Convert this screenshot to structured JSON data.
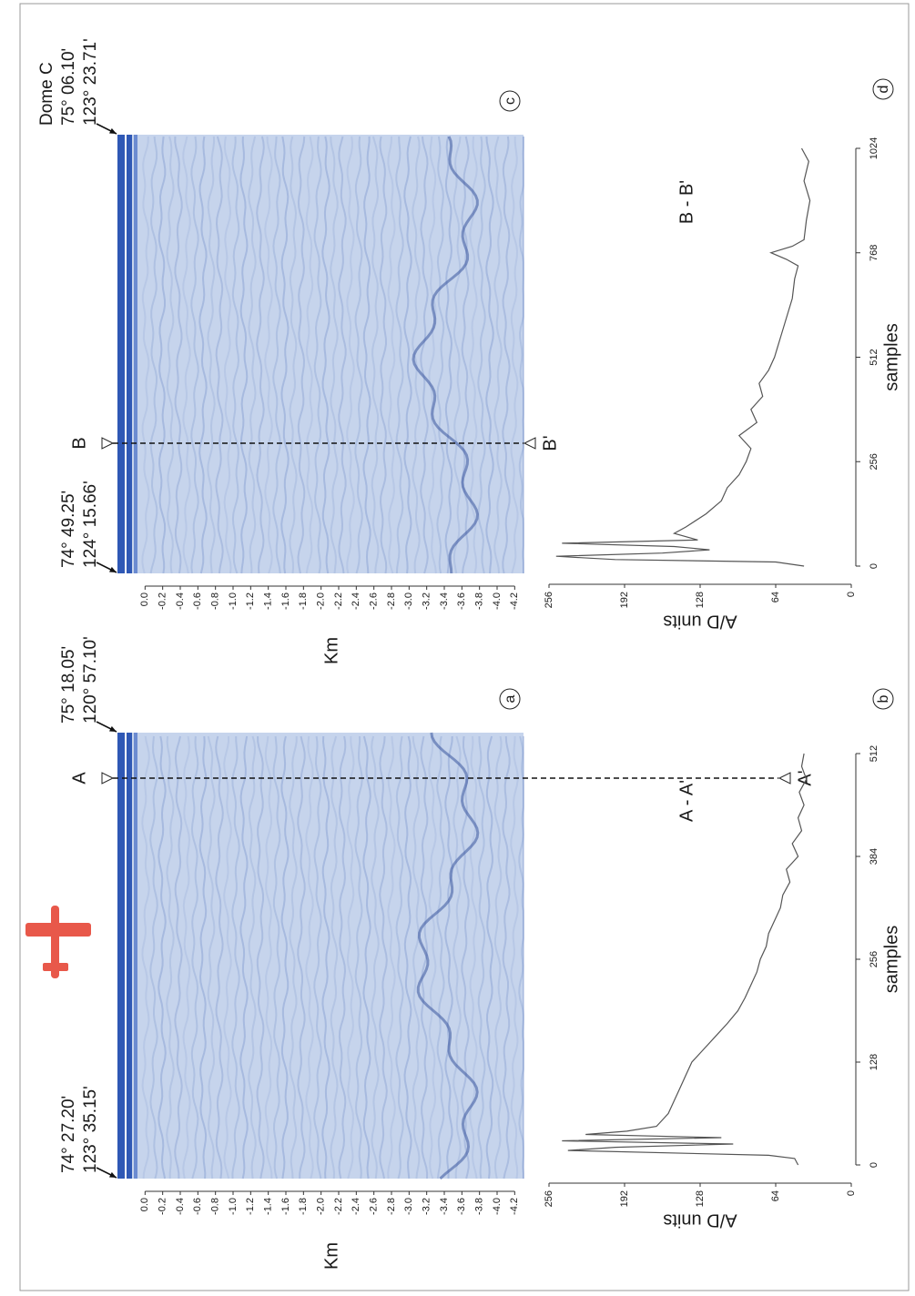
{
  "chart_data": [
    {
      "type": "radargram",
      "panel": "a",
      "ylabel": "Km",
      "ylim": [
        0.2,
        -4.3
      ],
      "yticks": [
        {
          "value": 0,
          "label": "0.0"
        },
        -0.2,
        -0.4,
        -0.6,
        -0.8,
        {
          "value": -1,
          "label": "-1.0"
        },
        -1.2,
        -1.4,
        -1.6,
        -1.8,
        {
          "value": -2,
          "label": "-2.0"
        },
        -2.2,
        -2.4,
        -2.6,
        -2.8,
        {
          "value": -3,
          "label": "-3.0"
        },
        -3.2,
        -3.4,
        -3.6,
        -3.8,
        {
          "value": -4,
          "label": "-4.0"
        },
        -4.2
      ],
      "start_coords": [
        "74° 27.20'",
        "123° 35.15'"
      ],
      "end_coords": [
        "75° 18.05'",
        "120° 57.10'"
      ],
      "section": [
        "A",
        "A'"
      ]
    },
    {
      "type": "line",
      "panel": "b",
      "title": "A - A'",
      "xlabel": "samples",
      "ylabel": "A/D units",
      "color": "#555555",
      "xlim": [
        0,
        512
      ],
      "xticks": [
        0,
        128,
        256,
        384,
        512
      ],
      "ylim": [
        0,
        256
      ],
      "yticks": [
        0,
        64,
        128,
        192,
        256
      ],
      "x": [
        0,
        8,
        12,
        18,
        22,
        26,
        30,
        34,
        38,
        42,
        48,
        56,
        64,
        80,
        96,
        112,
        128,
        144,
        160,
        176,
        192,
        208,
        224,
        240,
        256,
        272,
        288,
        304,
        320,
        336,
        352,
        368,
        384,
        400,
        416,
        432,
        448,
        464,
        480,
        496,
        512
      ],
      "values": [
        45,
        48,
        70,
        240,
        200,
        100,
        245,
        110,
        225,
        190,
        165,
        160,
        155,
        150,
        145,
        140,
        135,
        125,
        115,
        105,
        96,
        90,
        85,
        80,
        77,
        72,
        70,
        65,
        60,
        58,
        52,
        55,
        45,
        50,
        42,
        45,
        40,
        44,
        38,
        42,
        40
      ]
    },
    {
      "type": "radargram",
      "panel": "c",
      "ylabel": "Km",
      "ylim": [
        0.2,
        -4.3
      ],
      "yticks": [
        {
          "value": 0,
          "label": "0.0"
        },
        -0.2,
        -0.4,
        -0.6,
        -0.8,
        {
          "value": -1,
          "label": "-1.0"
        },
        -1.2,
        -1.4,
        -1.6,
        -1.8,
        {
          "value": -2,
          "label": "-2.0"
        },
        -2.2,
        -2.4,
        -2.6,
        -2.8,
        {
          "value": -3,
          "label": "-3.0"
        },
        -3.2,
        -3.4,
        -3.6,
        -3.8,
        {
          "value": -4,
          "label": "-4.0"
        },
        -4.2
      ],
      "start_coords": [
        "74° 49.25'",
        "124° 15.66'"
      ],
      "end_coords": [
        "Dome C",
        "75° 06.10'",
        "123° 23.71'"
      ],
      "section": [
        "B",
        "B'"
      ]
    },
    {
      "type": "line",
      "panel": "d",
      "title": "B - B'",
      "xlabel": "samples",
      "ylabel": "A/D units",
      "color": "#555555",
      "xlim": [
        0,
        1024
      ],
      "xticks": [
        0,
        256,
        512,
        768,
        1024
      ],
      "ylim": [
        0,
        256
      ],
      "yticks": [
        0,
        64,
        128,
        192,
        256
      ],
      "x": [
        0,
        10,
        16,
        24,
        32,
        40,
        48,
        56,
        64,
        80,
        96,
        128,
        160,
        192,
        224,
        256,
        288,
        320,
        352,
        384,
        416,
        448,
        480,
        512,
        560,
        608,
        656,
        704,
        736,
        752,
        768,
        784,
        800,
        848,
        896,
        944,
        992,
        1024
      ],
      "values": [
        40,
        64,
        200,
        250,
        160,
        120,
        150,
        245,
        130,
        150,
        140,
        123,
        110,
        105,
        95,
        89,
        85,
        95,
        80,
        85,
        75,
        78,
        70,
        65,
        60,
        55,
        50,
        48,
        45,
        55,
        68,
        50,
        40,
        38,
        35,
        40,
        36,
        42
      ]
    }
  ]
}
